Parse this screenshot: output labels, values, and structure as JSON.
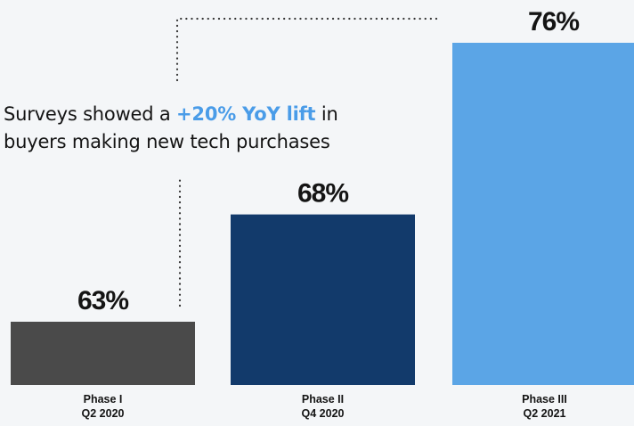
{
  "headline": {
    "prefix": "Surveys showed a ",
    "highlight": "+20% YoY lift",
    "suffix": " in",
    "line2": "buyers making new tech purchases"
  },
  "colors": {
    "highlight": "#4a9ce8",
    "text": "#141414",
    "background": "#f4f6f8",
    "bars": [
      "#4a4a4a",
      "#123a6b",
      "#5ba5e6"
    ],
    "dotted_connector": "#333333"
  },
  "chart_data": {
    "type": "bar",
    "categories": [
      {
        "name": "Phase I",
        "period": "Q2 2020"
      },
      {
        "name": "Phase II",
        "period": "Q4 2020"
      },
      {
        "name": "Phase III",
        "period": "Q2 2021"
      }
    ],
    "values": [
      63,
      68,
      76
    ],
    "value_labels": [
      "63%",
      "68%",
      "76%"
    ],
    "unit": "%",
    "grid": false,
    "title": "",
    "xlabel": "",
    "ylabel": ""
  }
}
